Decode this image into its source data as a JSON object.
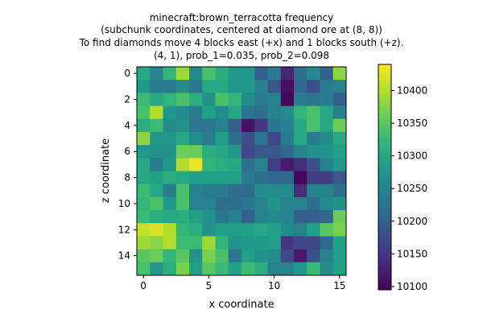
{
  "chart_data": {
    "type": "heatmap",
    "title_lines": [
      "minecraft:brown_terracotta frequency",
      "(subchunk coordinates, centered at diamond ore at (8, 8))",
      "To find diamonds move 4 blocks east (+x) and 1 blocks south (+z).",
      "(4, 1), prob_1=0.035, prob_2=0.098"
    ],
    "xlabel": "x coordinate",
    "ylabel": "z coordinate",
    "x_ticks": [
      0,
      5,
      10,
      15
    ],
    "y_ticks": [
      0,
      2,
      4,
      6,
      8,
      10,
      12,
      14
    ],
    "colorbar": {
      "vmin": 10095,
      "vmax": 10440,
      "ticks": [
        10100,
        10150,
        10200,
        10250,
        10300,
        10350,
        10400
      ]
    },
    "colormap_stops": [
      "#440154",
      "#482878",
      "#3e4989",
      "#31688e",
      "#26828e",
      "#1f9e89",
      "#35b779",
      "#6ece58",
      "#b5de2b",
      "#fde725"
    ],
    "values": [
      [
        10300,
        10250,
        10320,
        10390,
        10260,
        10340,
        10310,
        10280,
        10280,
        10200,
        10240,
        10130,
        10220,
        10260,
        10200,
        10380
      ],
      [
        10280,
        10240,
        10240,
        10260,
        10230,
        10300,
        10300,
        10280,
        10280,
        10250,
        10190,
        10110,
        10210,
        10180,
        10240,
        10250
      ],
      [
        10330,
        10300,
        10320,
        10340,
        10310,
        10270,
        10340,
        10320,
        10260,
        10240,
        10250,
        10100,
        10240,
        10230,
        10240,
        10200
      ],
      [
        10340,
        10400,
        10280,
        10260,
        10240,
        10290,
        10260,
        10300,
        10230,
        10220,
        10250,
        10260,
        10320,
        10340,
        10300,
        10250
      ],
      [
        10310,
        10330,
        10260,
        10270,
        10230,
        10230,
        10250,
        10200,
        10110,
        10150,
        10230,
        10250,
        10300,
        10340,
        10300,
        10360
      ],
      [
        10380,
        10280,
        10280,
        10300,
        10260,
        10240,
        10290,
        10220,
        10180,
        10230,
        10170,
        10240,
        10300,
        10240,
        10260,
        10300
      ],
      [
        10280,
        10270,
        10270,
        10360,
        10360,
        10310,
        10300,
        10280,
        10170,
        10190,
        10190,
        10210,
        10250,
        10270,
        10270,
        10290
      ],
      [
        10300,
        10240,
        10280,
        10400,
        10430,
        10320,
        10310,
        10300,
        10220,
        10250,
        10160,
        10120,
        10140,
        10180,
        10250,
        10280
      ],
      [
        10300,
        10290,
        10310,
        10300,
        10290,
        10290,
        10290,
        10290,
        10240,
        10220,
        10210,
        10210,
        10100,
        10160,
        10160,
        10190
      ],
      [
        10330,
        10300,
        10240,
        10340,
        10250,
        10240,
        10240,
        10220,
        10210,
        10260,
        10260,
        10260,
        10140,
        10250,
        10250,
        10220
      ],
      [
        10320,
        10340,
        10280,
        10340,
        10250,
        10250,
        10220,
        10220,
        10230,
        10250,
        10270,
        10250,
        10250,
        10220,
        10260,
        10270
      ],
      [
        10330,
        10310,
        10300,
        10310,
        10290,
        10270,
        10230,
        10250,
        10200,
        10250,
        10260,
        10250,
        10200,
        10200,
        10210,
        10360
      ],
      [
        10410,
        10420,
        10400,
        10320,
        10310,
        10270,
        10290,
        10290,
        10290,
        10300,
        10290,
        10260,
        10250,
        10290,
        10350,
        10370
      ],
      [
        10390,
        10380,
        10400,
        10330,
        10330,
        10390,
        10320,
        10270,
        10280,
        10280,
        10290,
        10150,
        10170,
        10170,
        10210,
        10290
      ],
      [
        10350,
        10360,
        10320,
        10350,
        10270,
        10370,
        10340,
        10230,
        10290,
        10270,
        10260,
        10170,
        10120,
        10180,
        10250,
        10290
      ],
      [
        10340,
        10280,
        10310,
        10370,
        10290,
        10350,
        10330,
        10290,
        10330,
        10310,
        10250,
        10250,
        10280,
        10330,
        10260,
        10290
      ]
    ]
  }
}
